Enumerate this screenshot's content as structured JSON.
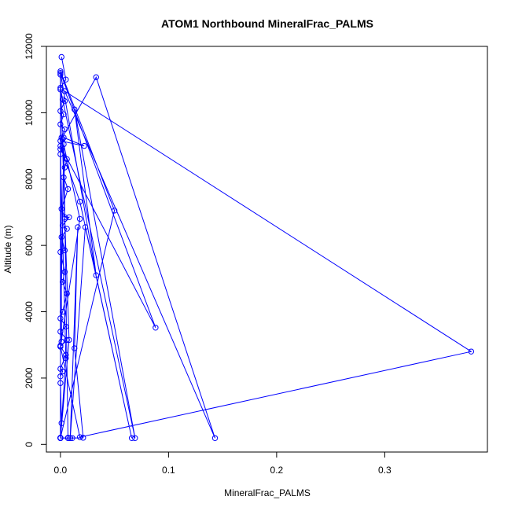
{
  "chart_data": {
    "type": "line",
    "title": "ATOM1 Northbound MineralFrac_PALMS",
    "xlabel": "MineralFrac_PALMS",
    "ylabel": "Altitude (m)",
    "xlim": [
      -0.013,
      0.395
    ],
    "ylim": [
      -230,
      12000
    ],
    "xticks": [
      0.0,
      0.1,
      0.2,
      0.3
    ],
    "xtick_labels": [
      "0.0",
      "0.1",
      "0.2",
      "0.3"
    ],
    "yticks": [
      0,
      2000,
      4000,
      6000,
      8000,
      10000,
      12000
    ],
    "ytick_labels": [
      "0",
      "2000",
      "4000",
      "6000",
      "8000",
      "10000",
      "12000"
    ],
    "grid": false,
    "series": [
      {
        "color": "#0000ff",
        "marker": "open-circle",
        "points": [
          [
            0.001,
            11680
          ],
          [
            0.005,
            11000
          ],
          [
            0.0,
            10750
          ],
          [
            0.002,
            10400
          ],
          [
            0.004,
            10350
          ],
          [
            0.0,
            10050
          ],
          [
            0.003,
            9950
          ],
          [
            0.0,
            9650
          ],
          [
            0.004,
            9500
          ],
          [
            0.001,
            9250
          ],
          [
            0.002,
            9200
          ],
          [
            0.0,
            8900
          ],
          [
            0.006,
            8600
          ],
          [
            0.004,
            8350
          ],
          [
            0.003,
            8050
          ],
          [
            0.007,
            7700
          ],
          [
            0.001,
            7100
          ],
          [
            0.004,
            6850
          ],
          [
            0.008,
            6850
          ],
          [
            0.002,
            6600
          ],
          [
            0.006,
            6500
          ],
          [
            0.001,
            6250
          ],
          [
            0.004,
            5850
          ],
          [
            0.0,
            5800
          ],
          [
            0.004,
            5200
          ],
          [
            0.002,
            4900
          ],
          [
            0.006,
            4550
          ],
          [
            0.002,
            4000
          ],
          [
            0.0,
            3800
          ],
          [
            0.005,
            3550
          ],
          [
            0.0,
            3400
          ],
          [
            0.006,
            3150
          ],
          [
            0.0,
            2950
          ],
          [
            0.005,
            2700
          ],
          [
            0.0,
            2280
          ],
          [
            0.002,
            2200
          ],
          [
            0.0,
            2050
          ],
          [
            0.0,
            1850
          ],
          [
            0.001,
            640
          ],
          [
            0.0,
            190
          ],
          [
            0.011,
            190
          ],
          [
            0.007,
            200
          ],
          [
            0.009,
            190
          ],
          [
            0.021,
            200
          ],
          [
            0.013,
            2900
          ],
          [
            0.016,
            6550
          ],
          [
            0.009,
            190
          ],
          [
            0.023,
            6550
          ],
          [
            0.066,
            190
          ],
          [
            0.018,
            7320
          ],
          [
            0.0,
            9000
          ],
          [
            0.088,
            3520
          ],
          [
            0.0,
            11200
          ],
          [
            0.033,
            5100
          ],
          [
            0.013,
            10100
          ],
          [
            0.069,
            190
          ],
          [
            0.0,
            10700
          ],
          [
            0.0,
            200
          ],
          [
            0.05,
            7050
          ],
          [
            0.0,
            11250
          ],
          [
            0.0,
            200
          ],
          [
            0.007,
            190
          ],
          [
            0.003,
            9250
          ],
          [
            0.022,
            9000
          ],
          [
            0.0,
            9150
          ],
          [
            0.033,
            11070
          ],
          [
            0.143,
            190
          ],
          [
            0.004,
            10650
          ],
          [
            0.38,
            2800
          ],
          [
            0.018,
            220
          ],
          [
            0.0,
            2950
          ],
          [
            0.018,
            6800
          ],
          [
            0.003,
            9050
          ],
          [
            0.0,
            2980
          ],
          [
            0.0,
            190
          ],
          [
            0.005,
            2600
          ],
          [
            0.0,
            8750
          ],
          [
            0.001,
            3100
          ],
          [
            0.0,
            11150
          ],
          [
            0.004,
            6800
          ],
          [
            0.008,
            3150
          ],
          [
            0.0,
            190
          ]
        ]
      }
    ]
  }
}
